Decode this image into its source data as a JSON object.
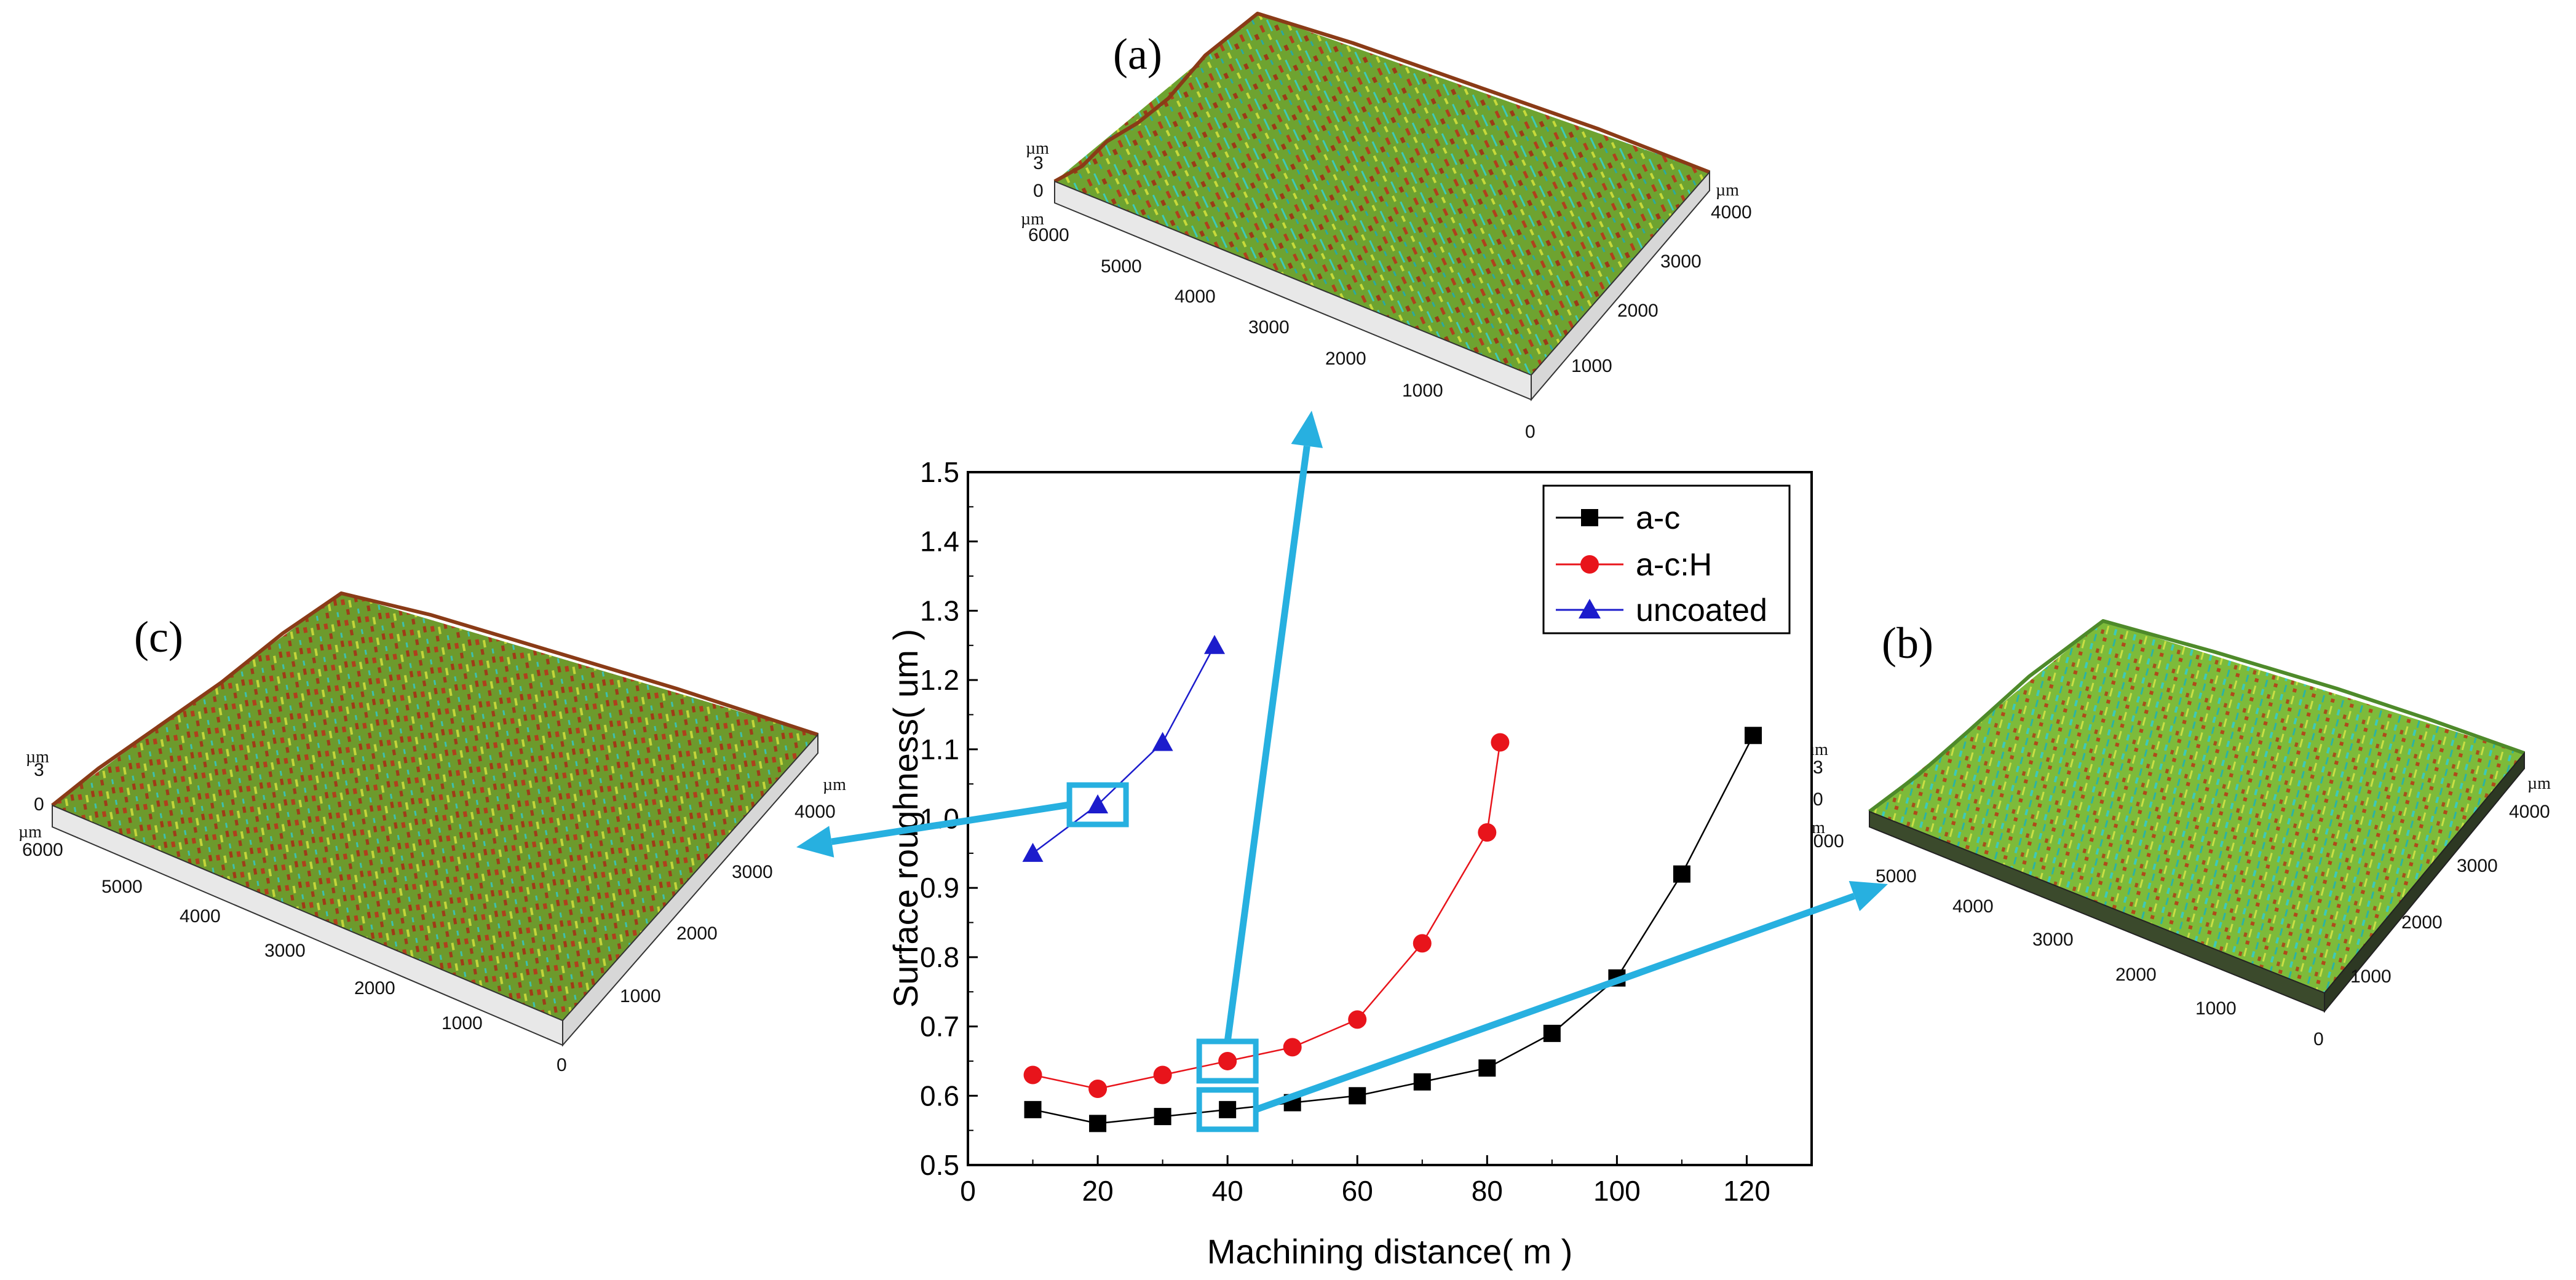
{
  "figure": {
    "panel_labels": {
      "a": "(a)",
      "b": "(b)",
      "c": "(c)"
    },
    "surface_axes": {
      "z_unit": "µm",
      "z_ticks": [
        "3",
        "0"
      ],
      "x_unit": "µm",
      "x_ticks": [
        "6000",
        "5000",
        "4000",
        "3000",
        "2000",
        "1000"
      ],
      "y_unit": "µm",
      "y_ticks": [
        "4000",
        "3000",
        "2000",
        "1000",
        "0"
      ]
    },
    "colors": {
      "a_c": "#000000",
      "a_cH": "#e8141b",
      "uncoated": "#1c1ccc",
      "highlight": "#27b0e0",
      "surface_green": "#6ea330",
      "surface_red": "#b0401d",
      "surface_cyan": "#3dc9b8"
    }
  },
  "chart_data": {
    "type": "line",
    "xlabel": "Machining distance( m )",
    "ylabel": "Surface roughness( um )",
    "xlim": [
      0,
      130
    ],
    "ylim": [
      0.5,
      1.5
    ],
    "x_ticks": [
      0,
      20,
      40,
      60,
      80,
      100,
      120
    ],
    "y_ticks": [
      0.5,
      0.6,
      0.7,
      0.8,
      0.9,
      1.0,
      1.1,
      1.2,
      1.3,
      1.4,
      1.5
    ],
    "x_tick_labels": [
      "0",
      "20",
      "40",
      "60",
      "80",
      "100",
      "120"
    ],
    "y_tick_labels": [
      "0.5",
      "0.6",
      "0.7",
      "0.8",
      "0.9",
      "1.0",
      "1.1",
      "1.2",
      "1.3",
      "1.4",
      "1.5"
    ],
    "legend_position": "top-right",
    "series": [
      {
        "name": "a-c",
        "marker": "square",
        "color": "#000000",
        "x": [
          10,
          20,
          30,
          40,
          50,
          60,
          70,
          80,
          90,
          100,
          110,
          121
        ],
        "y": [
          0.58,
          0.56,
          0.57,
          0.58,
          0.59,
          0.6,
          0.62,
          0.64,
          0.69,
          0.77,
          0.92,
          1.12
        ]
      },
      {
        "name": "a-c:H",
        "marker": "circle",
        "color": "#e8141b",
        "x": [
          10,
          20,
          30,
          40,
          50,
          60,
          70,
          80,
          82
        ],
        "y": [
          0.63,
          0.61,
          0.63,
          0.65,
          0.67,
          0.71,
          0.82,
          0.98,
          1.11
        ]
      },
      {
        "name": "uncoated",
        "marker": "triangle",
        "color": "#1c1ccc",
        "x": [
          10,
          20,
          30,
          38
        ],
        "y": [
          0.95,
          1.02,
          1.11,
          1.25
        ]
      }
    ],
    "highlights": [
      {
        "series": "uncoated",
        "x": 20,
        "y": 1.02,
        "points_to": "c"
      },
      {
        "series": "a-c:H",
        "x": 40,
        "y": 0.65,
        "points_to": "a"
      },
      {
        "series": "a-c",
        "x": 40,
        "y": 0.58,
        "points_to": "b"
      }
    ]
  }
}
